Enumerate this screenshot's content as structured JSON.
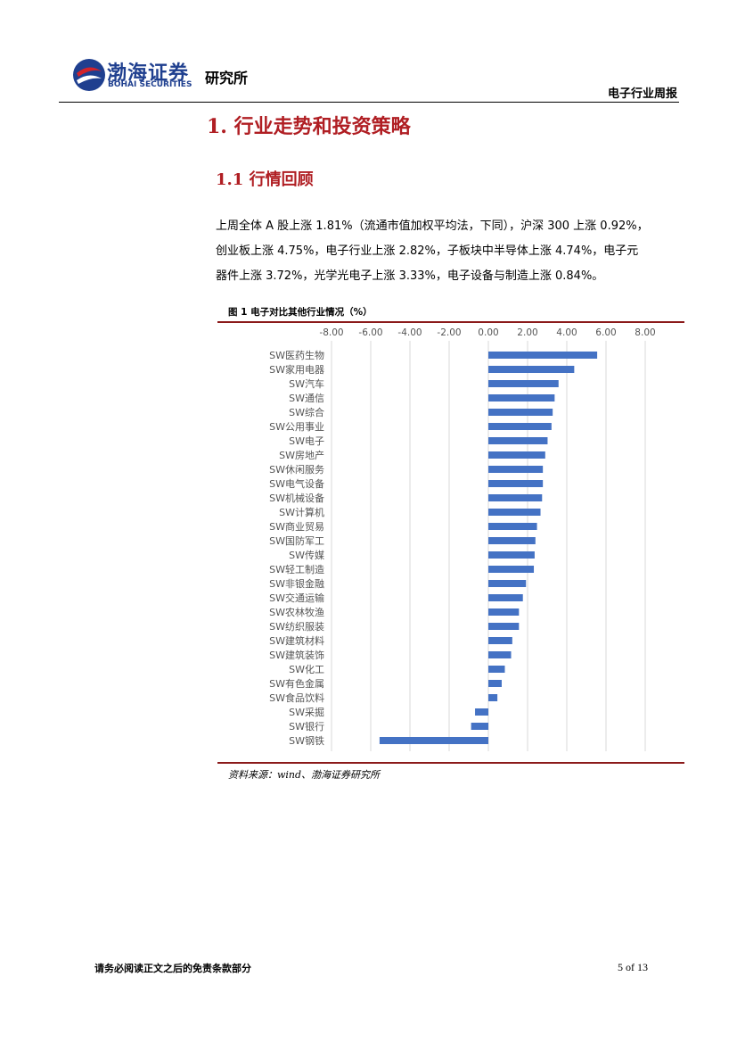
{
  "header": {
    "logo_cn": "渤海证券",
    "logo_en": "BOHAI SECURITIES",
    "institute": "研究所",
    "report_type": "电子行业周报"
  },
  "section": {
    "h1": "1. 行业走势和投资策略",
    "h2": "1.1 行情回顾",
    "paragraph_lines": [
      "上周全体 A 股上涨 1.81%（流通市值加权平均法，下同），沪深 300 上涨 0.92%，",
      "创业板上涨 4.75%，电子行业上涨 2.82%，子板块中半导体上涨 4.74%，电子元",
      "器件上涨 3.72%，光学光电子上涨 3.33%，电子设备与制造上涨 0.84%。"
    ]
  },
  "figure": {
    "title": "图 1 电子对比其他行业情况（%）",
    "source": "资料来源：wind、渤海证券研究所"
  },
  "chart_data": {
    "type": "bar",
    "orientation": "horizontal",
    "bar_color": "#4472c4",
    "xlim": [
      -8,
      8
    ],
    "ticks": [
      "-8.00",
      "-6.00",
      "-4.00",
      "-2.00",
      "0.00",
      "2.00",
      "4.00",
      "6.00",
      "8.00"
    ],
    "tick_values": [
      -8,
      -6,
      -4,
      -2,
      0,
      2,
      4,
      6,
      8
    ],
    "grid": true,
    "axis_position": "top",
    "categories": [
      "SW医药生物",
      "SW家用电器",
      "SW汽车",
      "SW通信",
      "SW综合",
      "SW公用事业",
      "SW电子",
      "SW房地产",
      "SW休闲服务",
      "SW电气设备",
      "SW机械设备",
      "SW计算机",
      "SW商业贸易",
      "SW国防军工",
      "SW传媒",
      "SW轻工制造",
      "SW非银金融",
      "SW交通运输",
      "SW农林牧渔",
      "SW纺织服装",
      "SW建筑材料",
      "SW建筑装饰",
      "SW化工",
      "SW有色金属",
      "SW食品饮料",
      "SW采掘",
      "SW银行",
      "SW钢铁"
    ],
    "values": [
      5.55,
      4.38,
      3.58,
      3.38,
      3.28,
      3.22,
      3.02,
      2.9,
      2.78,
      2.78,
      2.74,
      2.66,
      2.48,
      2.4,
      2.36,
      2.32,
      1.92,
      1.76,
      1.56,
      1.56,
      1.22,
      1.16,
      0.84,
      0.68,
      0.46,
      -0.68,
      -0.88,
      -5.55
    ]
  },
  "footer": {
    "disclaimer": "请务必阅读正文之后的免责条款部分",
    "page": "5 of 13"
  }
}
